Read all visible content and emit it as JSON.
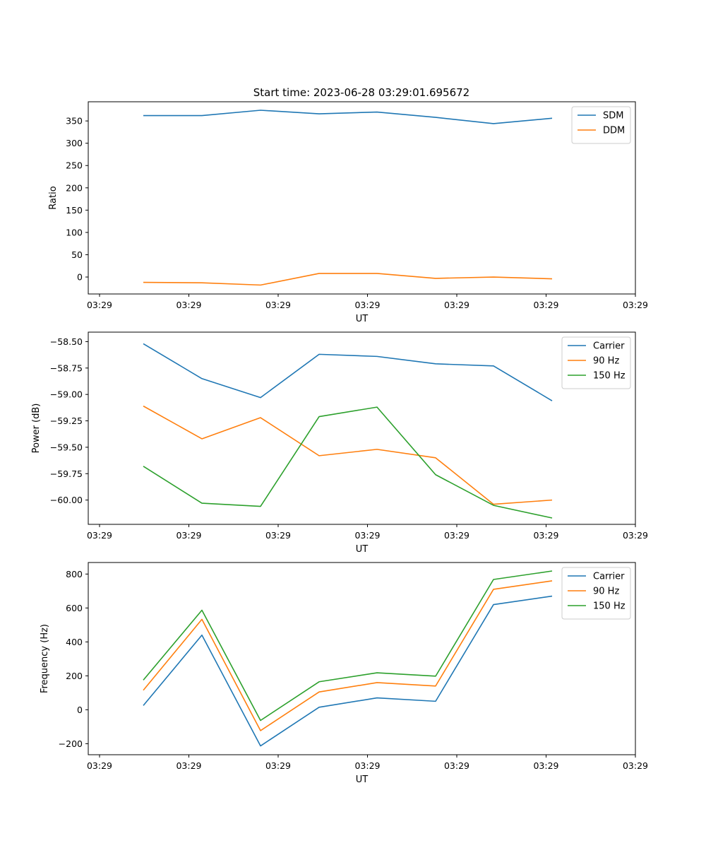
{
  "figure": {
    "title": "Start time: 2023-06-28 03:29:01.695672"
  },
  "colors": {
    "blue": "#1f77b4",
    "orange": "#ff7f0e",
    "green": "#2ca02c"
  },
  "chart_data": [
    {
      "type": "line",
      "ylabel": "Ratio",
      "xlabel": "UT",
      "x_tick_labels": [
        "03:29",
        "03:29",
        "03:29",
        "03:29",
        "03:29",
        "03:29",
        "03:29"
      ],
      "y_ticks": [
        0,
        50,
        100,
        150,
        200,
        250,
        300,
        350
      ],
      "ylim": [
        -38,
        393
      ],
      "legend_position": "upper right",
      "series": [
        {
          "name": "SDM",
          "color": "#1f77b4",
          "values": [
            362,
            362,
            374,
            366,
            370,
            358,
            344,
            356
          ]
        },
        {
          "name": "DDM",
          "color": "#ff7f0e",
          "values": [
            -12,
            -13,
            -18,
            8,
            8,
            -3,
            0,
            -4
          ]
        }
      ]
    },
    {
      "type": "line",
      "ylabel": "Power (dB)",
      "xlabel": "UT",
      "x_tick_labels": [
        "03:29",
        "03:29",
        "03:29",
        "03:29",
        "03:29",
        "03:29",
        "03:29"
      ],
      "y_ticks": [
        -60.0,
        -59.75,
        -59.5,
        -59.25,
        -59.0,
        -58.75,
        -58.5
      ],
      "y_tick_labels": [
        "−60.00",
        "−59.75",
        "−59.50",
        "−59.25",
        "−59.00",
        "−58.75",
        "−58.50"
      ],
      "ylim": [
        -60.23,
        -58.41
      ],
      "legend_position": "upper right",
      "series": [
        {
          "name": "Carrier",
          "color": "#1f77b4",
          "values": [
            -58.52,
            -58.85,
            -59.03,
            -58.62,
            -58.64,
            -58.71,
            -58.73,
            -59.06
          ]
        },
        {
          "name": "90 Hz",
          "color": "#ff7f0e",
          "values": [
            -59.11,
            -59.42,
            -59.22,
            -59.58,
            -59.52,
            -59.6,
            -60.04,
            -60.0
          ]
        },
        {
          "name": "150 Hz",
          "color": "#2ca02c",
          "values": [
            -59.68,
            -60.03,
            -60.06,
            -59.21,
            -59.12,
            -59.76,
            -60.05,
            -60.17
          ]
        }
      ]
    },
    {
      "type": "line",
      "ylabel": "Frequency (Hz)",
      "xlabel": "UT",
      "x_tick_labels": [
        "03:29",
        "03:29",
        "03:29",
        "03:29",
        "03:29",
        "03:29",
        "03:29"
      ],
      "y_ticks": [
        -200,
        0,
        200,
        400,
        600,
        800
      ],
      "y_tick_labels": [
        "−200",
        "0",
        "200",
        "400",
        "600",
        "800"
      ],
      "ylim": [
        -265,
        868
      ],
      "legend_position": "upper right",
      "series": [
        {
          "name": "Carrier",
          "color": "#1f77b4",
          "values": [
            25,
            440,
            -213,
            15,
            70,
            50,
            620,
            670
          ]
        },
        {
          "name": "90 Hz",
          "color": "#ff7f0e",
          "values": [
            115,
            533,
            -123,
            105,
            160,
            140,
            710,
            760
          ]
        },
        {
          "name": "150 Hz",
          "color": "#2ca02c",
          "values": [
            175,
            587,
            -63,
            165,
            218,
            198,
            768,
            818
          ]
        }
      ]
    }
  ]
}
